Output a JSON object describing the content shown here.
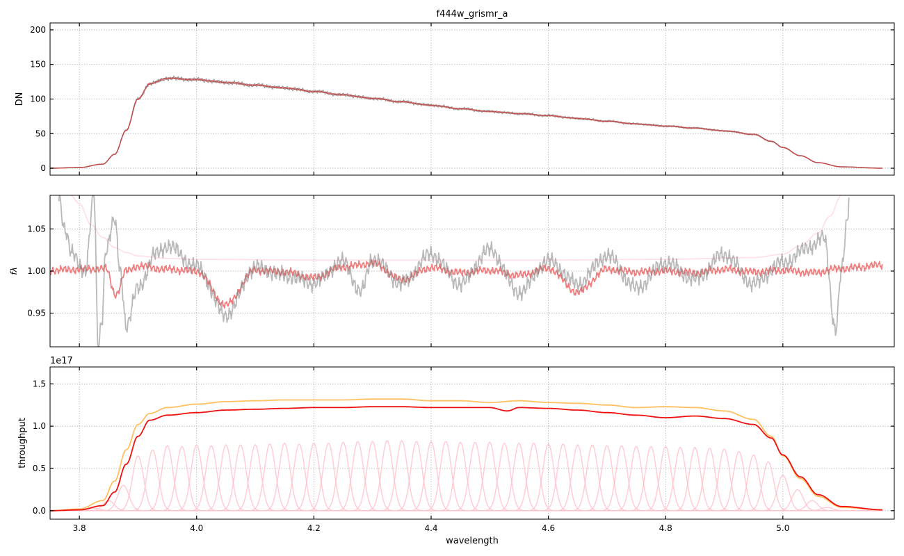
{
  "figure": {
    "title": "f444w_grismr_a",
    "xlabel": "wavelength"
  },
  "colors": {
    "grey": "#7f7f7f",
    "red_model": "#c83c3c",
    "red_line": "#f07070",
    "pink_env": "#ffe0e6",
    "pink_bands": "#ffc0cb",
    "orange": "#ffc060",
    "red_throughput": "#ee1111",
    "grid": "#b0b0b0"
  },
  "chart_data": [
    {
      "type": "line",
      "ylabel": "DN",
      "xlim": [
        3.75,
        5.19
      ],
      "ylim": [
        -10,
        210
      ],
      "xticks": [
        3.8,
        4.0,
        4.2,
        4.4,
        4.6,
        4.8,
        5.0
      ],
      "yticks": [
        0,
        50,
        100,
        150,
        200
      ],
      "xticklabels_visible": false,
      "grid": true,
      "series": [
        {
          "role": "data",
          "color": "#7f7f7f",
          "x": [
            3.75,
            3.8,
            3.84,
            3.86,
            3.88,
            3.9,
            3.92,
            3.95,
            4.0,
            4.05,
            4.1,
            4.15,
            4.2,
            4.25,
            4.3,
            4.35,
            4.4,
            4.45,
            4.5,
            4.55,
            4.6,
            4.65,
            4.7,
            4.75,
            4.8,
            4.85,
            4.9,
            4.95,
            4.98,
            5.0,
            5.03,
            5.06,
            5.1,
            5.17
          ],
          "y": [
            0,
            1,
            6,
            20,
            55,
            100,
            122,
            130,
            128,
            124,
            120,
            116,
            111,
            106,
            101,
            96,
            91,
            86,
            82,
            79,
            76,
            72,
            68,
            64,
            61,
            58,
            54,
            49,
            39,
            30,
            18,
            8,
            2,
            0
          ]
        },
        {
          "role": "model",
          "color": "#c83c3c",
          "x": [
            3.75,
            3.8,
            3.84,
            3.86,
            3.88,
            3.9,
            3.92,
            3.95,
            4.0,
            4.05,
            4.1,
            4.15,
            4.2,
            4.25,
            4.3,
            4.35,
            4.4,
            4.45,
            4.5,
            4.55,
            4.6,
            4.65,
            4.7,
            4.75,
            4.8,
            4.85,
            4.9,
            4.95,
            4.98,
            5.0,
            5.03,
            5.06,
            5.1,
            5.17
          ],
          "y": [
            0,
            1,
            6,
            20,
            55,
            100,
            122,
            130,
            128,
            124,
            120,
            116,
            111,
            106,
            101,
            96,
            91,
            86,
            82,
            79,
            76,
            72,
            68,
            64,
            61,
            58,
            54,
            49,
            39,
            30,
            18,
            8,
            2,
            0
          ]
        }
      ]
    },
    {
      "type": "line",
      "ylabel": "fλ",
      "xlim": [
        3.75,
        5.19
      ],
      "ylim": [
        0.91,
        1.09
      ],
      "xticks": [
        3.8,
        4.0,
        4.2,
        4.4,
        4.6,
        4.8,
        5.0
      ],
      "yticks": [
        0.95,
        1.0,
        1.05
      ],
      "yticklabels": [
        "0.95",
        "1.00",
        "1.05"
      ],
      "xticklabels_visible": false,
      "grid": true,
      "series": [
        {
          "role": "envelope",
          "color": "#ffe0e6",
          "x": [
            3.785,
            3.8,
            3.82,
            3.84,
            3.86,
            3.88,
            3.9,
            3.95,
            4.0,
            4.2,
            4.4,
            4.6,
            4.8,
            4.95,
            5.0,
            5.03,
            5.06,
            5.08,
            5.1
          ],
          "y": [
            1.09,
            1.08,
            1.055,
            1.04,
            1.028,
            1.022,
            1.018,
            1.015,
            1.014,
            1.013,
            1.013,
            1.013,
            1.014,
            1.016,
            1.02,
            1.03,
            1.045,
            1.065,
            1.09
          ]
        },
        {
          "role": "model",
          "color": "#f07070",
          "x": [
            3.75,
            3.8,
            3.845,
            3.862,
            3.88,
            3.9,
            3.95,
            4.0,
            4.05,
            4.1,
            4.15,
            4.2,
            4.25,
            4.3,
            4.35,
            4.4,
            4.45,
            4.5,
            4.55,
            4.6,
            4.65,
            4.7,
            4.75,
            4.8,
            4.85,
            4.9,
            4.95,
            5.0,
            5.05,
            5.1,
            5.17
          ],
          "y": [
            1.001,
            1.002,
            1.003,
            0.972,
            1.0,
            1.006,
            1.002,
            1.0,
            0.96,
            1.001,
            0.999,
            0.992,
            1.005,
            1.009,
            0.99,
            1.004,
            0.998,
            1.001,
            0.995,
            1.003,
            0.975,
            1.002,
            0.999,
            1.0,
            0.998,
            1.002,
            0.999,
            1.001,
            0.998,
            1.003,
            1.007
          ]
        },
        {
          "role": "data",
          "color": "#7f7f7f",
          "x": [
            3.765,
            3.775,
            3.787,
            3.81,
            3.825,
            3.832,
            3.838,
            3.845,
            3.86,
            3.87,
            3.88,
            3.9,
            3.93,
            3.95,
            4.0,
            4.05,
            4.1,
            4.15,
            4.2,
            4.25,
            4.28,
            4.3,
            4.35,
            4.4,
            4.45,
            4.5,
            4.55,
            4.6,
            4.65,
            4.7,
            4.75,
            4.8,
            4.85,
            4.9,
            4.95,
            5.0,
            5.05,
            5.07,
            5.09,
            5.1,
            5.11,
            5.113
          ],
          "y": [
            1.09,
            1.05,
            1.02,
            1.0,
            1.09,
            0.91,
            0.94,
            1.025,
            1.06,
            1.0,
            0.935,
            0.98,
            1.02,
            1.03,
            1.005,
            0.948,
            1.004,
            0.995,
            0.986,
            1.011,
            0.975,
            1.015,
            0.985,
            1.02,
            0.985,
            1.025,
            0.975,
            1.012,
            0.985,
            1.018,
            0.98,
            1.01,
            0.99,
            1.02,
            0.985,
            1.01,
            1.03,
            1.04,
            0.93,
            1.0,
            1.06,
            1.09
          ]
        }
      ]
    },
    {
      "type": "line",
      "ylabel": "throughput",
      "offset_label": "1e17",
      "xlim": [
        3.75,
        5.19
      ],
      "ylim": [
        -0.1,
        1.7
      ],
      "xticks": [
        3.8,
        4.0,
        4.2,
        4.4,
        4.6,
        4.8,
        5.0
      ],
      "xticklabels": [
        "3.8",
        "4.0",
        "4.2",
        "4.4",
        "4.6",
        "4.8",
        "5.0"
      ],
      "yticks": [
        0.0,
        0.5,
        1.0,
        1.5
      ],
      "yticklabels": [
        "0.0",
        "0.5",
        "1.0",
        "1.5"
      ],
      "grid": true,
      "series": [
        {
          "role": "total_orange",
          "color": "#ffc060",
          "x": [
            3.75,
            3.8,
            3.84,
            3.86,
            3.88,
            3.9,
            3.92,
            3.95,
            4.0,
            4.05,
            4.1,
            4.15,
            4.2,
            4.25,
            4.3,
            4.35,
            4.4,
            4.45,
            4.5,
            4.55,
            4.6,
            4.65,
            4.7,
            4.75,
            4.8,
            4.85,
            4.9,
            4.95,
            4.98,
            5.0,
            5.03,
            5.06,
            5.1,
            5.17
          ],
          "y": [
            0.0,
            0.02,
            0.12,
            0.35,
            0.72,
            1.02,
            1.15,
            1.22,
            1.26,
            1.29,
            1.3,
            1.31,
            1.31,
            1.31,
            1.32,
            1.32,
            1.3,
            1.3,
            1.28,
            1.3,
            1.28,
            1.27,
            1.25,
            1.22,
            1.23,
            1.22,
            1.18,
            1.08,
            0.88,
            0.65,
            0.38,
            0.17,
            0.04,
            0.01
          ]
        },
        {
          "role": "total_red",
          "color": "#ee1111",
          "x": [
            3.75,
            3.8,
            3.84,
            3.86,
            3.88,
            3.9,
            3.92,
            3.95,
            4.0,
            4.05,
            4.1,
            4.15,
            4.2,
            4.25,
            4.3,
            4.35,
            4.4,
            4.45,
            4.5,
            4.53,
            4.55,
            4.6,
            4.65,
            4.7,
            4.75,
            4.8,
            4.85,
            4.9,
            4.95,
            4.98,
            5.0,
            5.03,
            5.06,
            5.1,
            5.17
          ],
          "y": [
            0.0,
            0.01,
            0.06,
            0.22,
            0.55,
            0.88,
            1.07,
            1.13,
            1.16,
            1.19,
            1.2,
            1.21,
            1.22,
            1.22,
            1.23,
            1.23,
            1.22,
            1.22,
            1.22,
            1.18,
            1.22,
            1.21,
            1.19,
            1.16,
            1.13,
            1.1,
            1.12,
            1.09,
            1.02,
            0.86,
            0.66,
            0.4,
            0.19,
            0.05,
            0.01
          ]
        }
      ],
      "bands": {
        "role": "pink_components",
        "color": "#ffc0cb",
        "centers": [
          3.825,
          3.85,
          3.875,
          3.9,
          3.925,
          3.95,
          3.975,
          4.0,
          4.025,
          4.05,
          4.075,
          4.1,
          4.125,
          4.15,
          4.175,
          4.2,
          4.225,
          4.25,
          4.275,
          4.3,
          4.325,
          4.35,
          4.375,
          4.4,
          4.425,
          4.45,
          4.475,
          4.5,
          4.525,
          4.55,
          4.575,
          4.6,
          4.625,
          4.65,
          4.675,
          4.7,
          4.725,
          4.75,
          4.775,
          4.8,
          4.825,
          4.85,
          4.875,
          4.9,
          4.925,
          4.95,
          4.975,
          5.0,
          5.025,
          5.05,
          5.075
        ],
        "peaks": [
          0.03,
          0.12,
          0.3,
          0.65,
          0.72,
          0.77,
          0.76,
          0.78,
          0.77,
          0.78,
          0.78,
          0.78,
          0.79,
          0.8,
          0.79,
          0.8,
          0.8,
          0.81,
          0.82,
          0.82,
          0.83,
          0.83,
          0.82,
          0.82,
          0.82,
          0.81,
          0.81,
          0.81,
          0.8,
          0.8,
          0.8,
          0.79,
          0.79,
          0.78,
          0.78,
          0.77,
          0.77,
          0.76,
          0.76,
          0.76,
          0.75,
          0.75,
          0.74,
          0.73,
          0.7,
          0.66,
          0.58,
          0.42,
          0.25,
          0.12,
          0.04
        ],
        "sigma": 0.0095
      }
    }
  ]
}
